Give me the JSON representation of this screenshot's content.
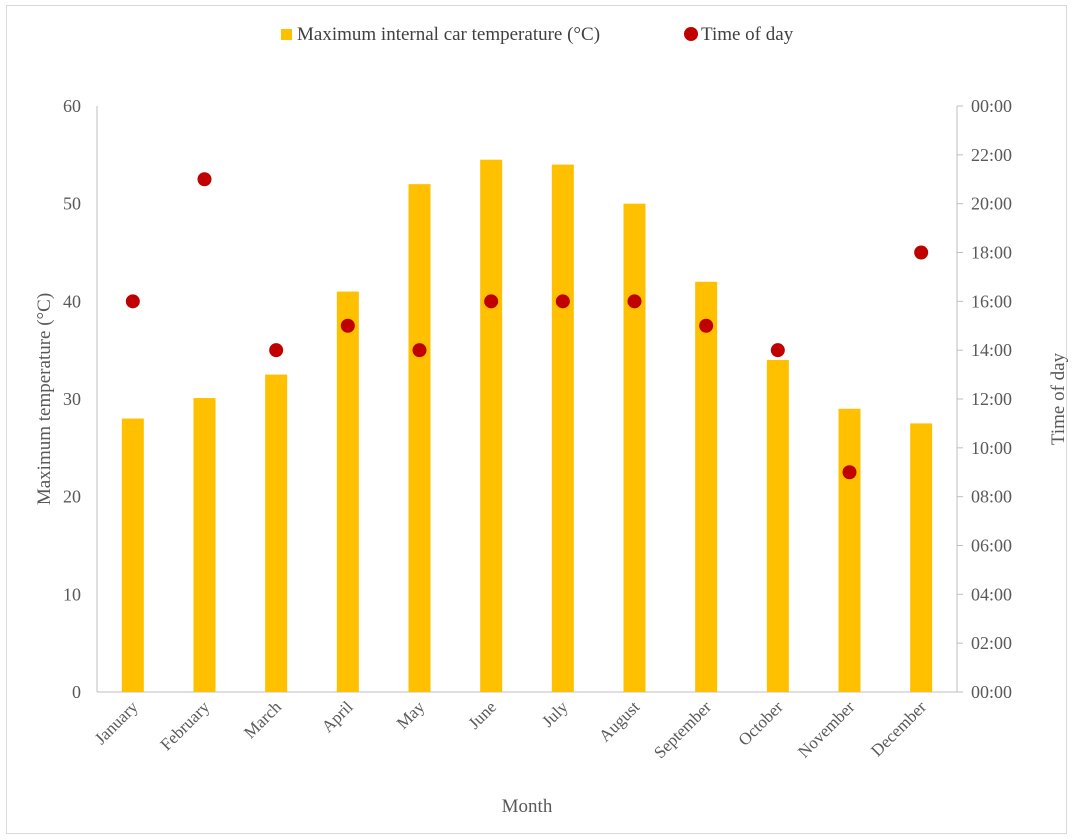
{
  "chart_data": {
    "type": "bar",
    "categories": [
      "January",
      "February",
      "March",
      "April",
      "May",
      "June",
      "July",
      "August",
      "September",
      "October",
      "November",
      "December"
    ],
    "series": [
      {
        "name": "Maximum internal car temperature (°C)",
        "kind": "bar",
        "axis": "left",
        "color": "#FFC000",
        "values": [
          28,
          30.1,
          32.5,
          41,
          52,
          54.5,
          54,
          50,
          42,
          34,
          29,
          27.5
        ]
      },
      {
        "name": "Time of day",
        "kind": "scatter",
        "axis": "right",
        "color": "#C00000",
        "values": [
          "16:00",
          "21:00",
          "14:00",
          "15:00",
          "14:00",
          "16:00",
          "16:00",
          "16:00",
          "15:00",
          "14:00",
          "09:00",
          "18:00"
        ]
      }
    ],
    "xlabel": "Month",
    "ylabel": "Maximum  temperature  (°C)",
    "y2label": "Time  of  day",
    "ylim": [
      0,
      60
    ],
    "yticks": [
      "0",
      "10",
      "20",
      "30",
      "40",
      "50",
      "60"
    ],
    "y2ticks": [
      "00:00",
      "02:00",
      "04:00",
      "06:00",
      "08:00",
      "10:00",
      "12:00",
      "14:00",
      "16:00",
      "18:00",
      "20:00",
      "22:00",
      "00:00"
    ],
    "y2range_hours": [
      0,
      24
    ],
    "legend_position": "top",
    "grid": false
  }
}
